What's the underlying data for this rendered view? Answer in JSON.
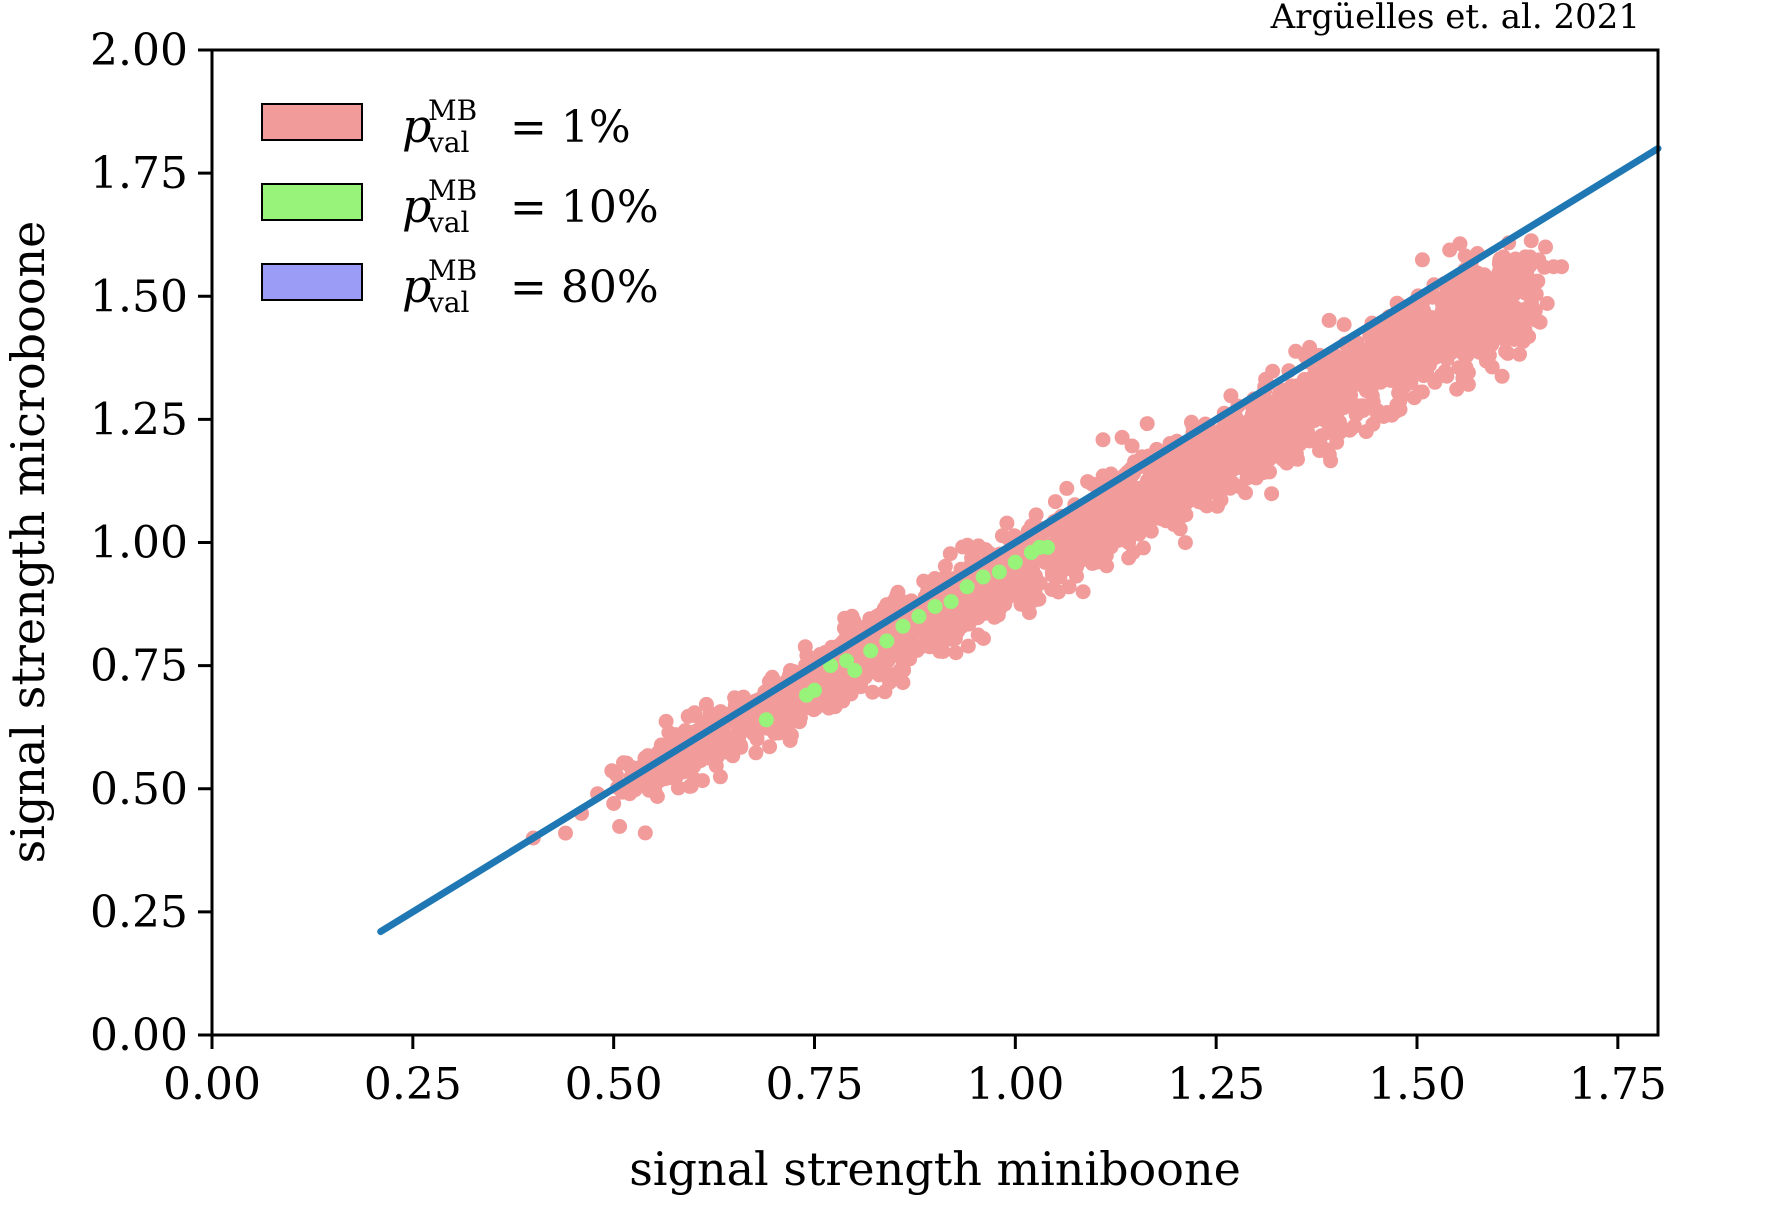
{
  "chart_data": {
    "type": "scatter",
    "annotation": "Argüelles et. al. 2021",
    "xlabel": "signal strength miniboone",
    "ylabel": "signal strength microboone",
    "xlim": [
      0.0,
      1.8
    ],
    "ylim": [
      0.0,
      2.0
    ],
    "xticks": [
      "0.00",
      "0.25",
      "0.50",
      "0.75",
      "1.00",
      "1.25",
      "1.50",
      "1.75"
    ],
    "yticks": [
      "0.00",
      "0.25",
      "0.50",
      "0.75",
      "1.00",
      "1.25",
      "1.50",
      "1.75",
      "2.00"
    ],
    "grid": false,
    "legend_position": "top-left",
    "legend": [
      {
        "symbol": "p",
        "superscript": "MB",
        "subscript": "val",
        "value": "= 1%",
        "color": "#f19c9b"
      },
      {
        "symbol": "p",
        "superscript": "MB",
        "subscript": "val",
        "value": "= 10%",
        "color": "#97f379"
      },
      {
        "symbol": "p",
        "superscript": "MB",
        "subscript": "val",
        "value": "= 80%",
        "color": "#9a9cf6"
      }
    ],
    "reference_line": {
      "x": [
        0.21,
        1.8
      ],
      "y": [
        0.21,
        1.8
      ],
      "color": "#1f77b4"
    },
    "series": [
      {
        "color": "#f19c9b",
        "band": {
          "x_min": 0.4,
          "x_max": 1.68,
          "slope": 0.91,
          "offset": 0.035,
          "spread": 0.05
        },
        "points": [
          [
            0.4,
            0.4
          ],
          [
            0.44,
            0.41
          ],
          [
            0.46,
            0.45
          ],
          [
            0.48,
            0.49
          ],
          [
            0.5,
            0.47
          ],
          [
            0.52,
            0.49
          ],
          [
            0.55,
            0.55
          ],
          [
            0.58,
            0.54
          ],
          [
            0.6,
            0.6
          ],
          [
            0.62,
            0.58
          ],
          [
            0.65,
            0.64
          ],
          [
            0.68,
            0.64
          ],
          [
            0.7,
            0.7
          ],
          [
            0.72,
            0.74
          ],
          [
            0.75,
            0.71
          ],
          [
            0.78,
            0.79
          ],
          [
            0.8,
            0.75
          ],
          [
            0.85,
            0.86
          ],
          [
            0.9,
            0.84
          ],
          [
            0.95,
            0.94
          ],
          [
            1.0,
            0.9
          ],
          [
            1.05,
            1.02
          ],
          [
            1.1,
            1.0
          ],
          [
            1.15,
            1.1
          ],
          [
            1.2,
            1.15
          ],
          [
            1.25,
            1.18
          ],
          [
            1.3,
            1.24
          ],
          [
            1.35,
            1.3
          ],
          [
            1.4,
            1.32
          ],
          [
            1.45,
            1.38
          ],
          [
            1.5,
            1.4
          ],
          [
            1.53,
            1.46
          ],
          [
            1.56,
            1.5
          ],
          [
            1.58,
            1.48
          ],
          [
            1.62,
            1.55
          ],
          [
            1.64,
            1.57
          ],
          [
            1.65,
            1.53
          ],
          [
            1.66,
            1.6
          ],
          [
            1.67,
            1.56
          ],
          [
            1.68,
            1.56
          ]
        ]
      },
      {
        "color": "#97f379",
        "points": [
          [
            0.69,
            0.64
          ],
          [
            0.74,
            0.69
          ],
          [
            0.75,
            0.7
          ],
          [
            0.77,
            0.75
          ],
          [
            0.79,
            0.76
          ],
          [
            0.8,
            0.74
          ],
          [
            0.82,
            0.78
          ],
          [
            0.84,
            0.8
          ],
          [
            0.86,
            0.83
          ],
          [
            0.88,
            0.85
          ],
          [
            0.9,
            0.87
          ],
          [
            0.92,
            0.88
          ],
          [
            0.94,
            0.91
          ],
          [
            0.96,
            0.93
          ],
          [
            0.98,
            0.94
          ],
          [
            1.0,
            0.96
          ],
          [
            1.02,
            0.98
          ],
          [
            1.03,
            0.99
          ],
          [
            1.04,
            0.99
          ]
        ]
      },
      {
        "color": "#9a9cf6",
        "points": []
      }
    ]
  }
}
